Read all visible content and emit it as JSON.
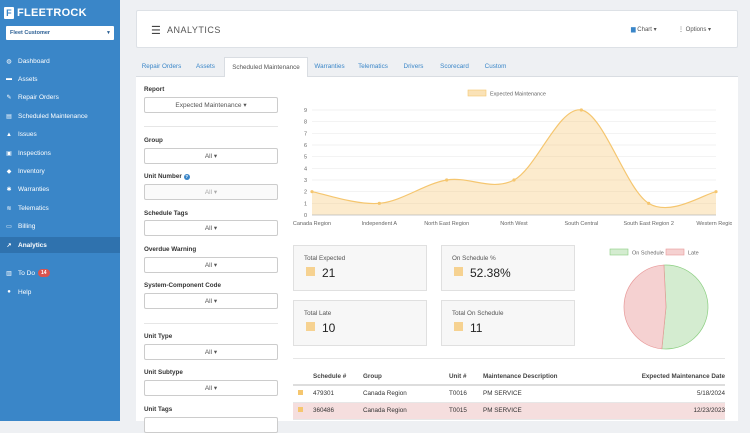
{
  "brand": {
    "logo_letter": "F",
    "name": "FLEETROCK"
  },
  "customer_select": {
    "value": "Fleet Customer"
  },
  "nav": [
    {
      "label": "Dashboard",
      "icon": "dashboard-icon",
      "glyph": "◍"
    },
    {
      "label": "Assets",
      "icon": "truck-icon",
      "glyph": "▬"
    },
    {
      "label": "Repair Orders",
      "icon": "wrench-icon",
      "glyph": "✎"
    },
    {
      "label": "Scheduled Maintenance",
      "icon": "calendar-icon",
      "glyph": "▤"
    },
    {
      "label": "Issues",
      "icon": "warning-icon",
      "glyph": "▲"
    },
    {
      "label": "Inspections",
      "icon": "clipboard-icon",
      "glyph": "▣"
    },
    {
      "label": "Inventory",
      "icon": "box-icon",
      "glyph": "◆"
    },
    {
      "label": "Warranties",
      "icon": "gear-icon",
      "glyph": "✱"
    },
    {
      "label": "Telematics",
      "icon": "wifi-icon",
      "glyph": "≋"
    },
    {
      "label": "Billing",
      "icon": "credit-card-icon",
      "glyph": "▭"
    },
    {
      "label": "Analytics",
      "icon": "chart-icon",
      "glyph": "↗"
    }
  ],
  "nav2": [
    {
      "label": "To Do",
      "icon": "inbox-icon",
      "glyph": "▥",
      "badge": "14"
    },
    {
      "label": "Help",
      "icon": "help-icon",
      "glyph": "●"
    }
  ],
  "header": {
    "title": "ANALYTICS",
    "chart_btn": "Chart ▾",
    "options_btn": "Options ▾"
  },
  "tabs": [
    "Repair Orders",
    "Assets",
    "Scheduled Maintenance",
    "Warranties",
    "Telematics",
    "Drivers",
    "Scorecard",
    "Custom"
  ],
  "filters": {
    "report": {
      "label": "Report",
      "value": "Expected Maintenance ▾"
    },
    "group": {
      "label": "Group",
      "value": "All ▾"
    },
    "unit_number": {
      "label": "Unit Number",
      "value": "All ▾"
    },
    "schedule_tags": {
      "label": "Schedule Tags",
      "value": "All ▾"
    },
    "overdue_warning": {
      "label": "Overdue Warning",
      "value": "All ▾"
    },
    "system_component_code": {
      "label": "System-Component Code",
      "value": "All ▾"
    },
    "unit_type": {
      "label": "Unit Type",
      "value": "All ▾"
    },
    "unit_subtype": {
      "label": "Unit Subtype",
      "value": "All ▾"
    },
    "unit_tags": {
      "label": "Unit Tags"
    }
  },
  "chart_data": {
    "type": "area",
    "legend": "Expected Maintenance",
    "categories": [
      "Canada Region",
      "Independent A",
      "North East Region",
      "North West",
      "South Central",
      "South East Region 2",
      "Western Region"
    ],
    "values": [
      2,
      1,
      3,
      3,
      9,
      1,
      2
    ],
    "yticks": [
      "0",
      "1",
      "2",
      "3",
      "4",
      "5",
      "6",
      "7",
      "8",
      "9"
    ],
    "ylim": [
      0,
      9
    ],
    "color": "#f5c66f"
  },
  "stats": {
    "total_expected": {
      "label": "Total Expected",
      "value": "21"
    },
    "on_schedule_pct": {
      "label": "On Schedule %",
      "value": "52.38%"
    },
    "total_late": {
      "label": "Total Late",
      "value": "10"
    },
    "total_on_schedule": {
      "label": "Total On Schedule",
      "value": "11"
    }
  },
  "pie": {
    "legend": [
      "On Schedule",
      "Late"
    ],
    "values": [
      11,
      10
    ],
    "colors": [
      "#d4ecd0",
      "#f5d1d1"
    ]
  },
  "table": {
    "headers": [
      "Schedule #",
      "Group",
      "Unit #",
      "Maintenance Description",
      "Expected Maintenance Date"
    ],
    "rows": [
      {
        "schedule": "479301",
        "group": "Canada Region",
        "unit": "T0016",
        "desc": "PM SERVICE",
        "date": "5/18/2024",
        "late": false
      },
      {
        "schedule": "360486",
        "group": "Canada Region",
        "unit": "T0015",
        "desc": "PM SERVICE",
        "date": "12/23/2023",
        "late": true
      }
    ]
  }
}
